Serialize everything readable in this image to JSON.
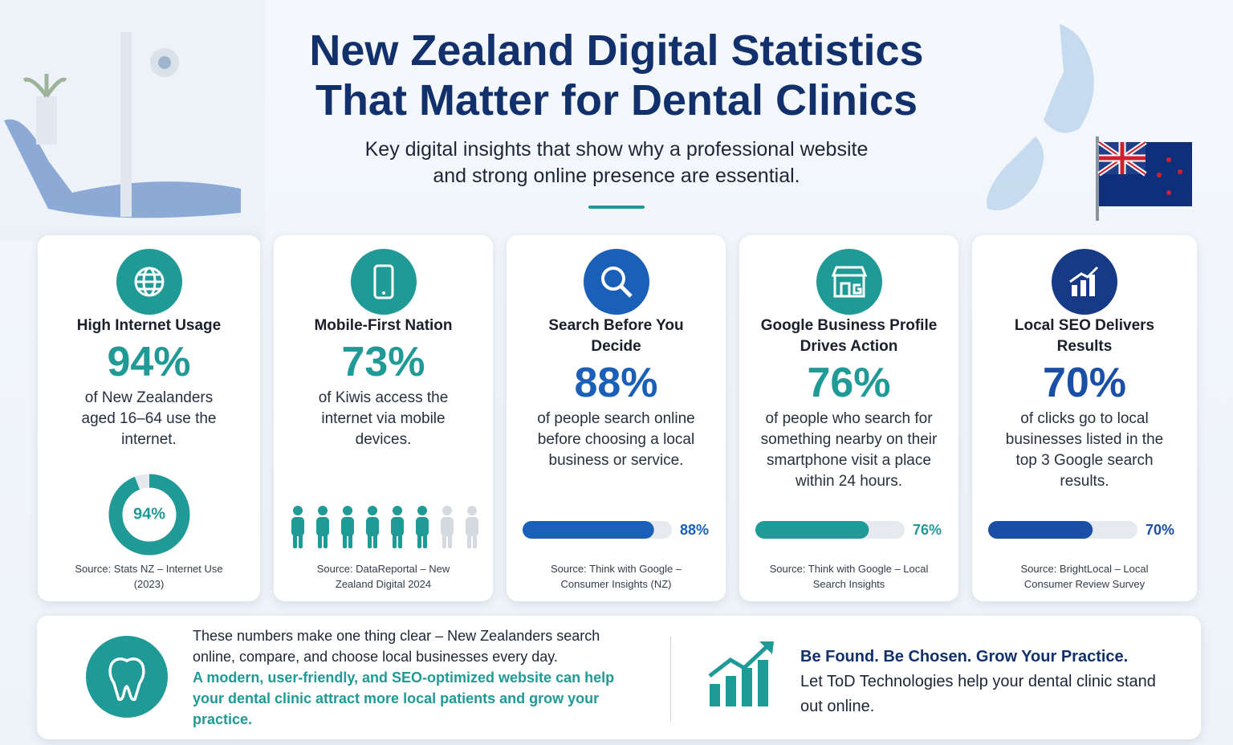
{
  "header": {
    "title": [
      "New Zealand Digital Statistics",
      "That Matter for Dental Clinics"
    ],
    "subtitle": [
      "Key digital insights that show why a professional website",
      "and strong online presence are essential."
    ]
  },
  "cards": [
    {
      "title": "High Internet Usage",
      "stat": {
        "value": 94,
        "label": "94%"
      },
      "description": "of New Zealanders aged 16–64 use the internet.",
      "visual": "donut",
      "color": "#1f9a96",
      "source": "Source: Stats NZ – Internet Use (2023)"
    },
    {
      "title": "Mobile-First Nation",
      "stat": {
        "value": 73,
        "label": "73%"
      },
      "description": "of Kiwis access the internet via mobile devices.",
      "visual": "people",
      "color": "#1f9a96",
      "source": "Source: DataReportal – New Zealand Digital 2024"
    },
    {
      "title": "Search Before You Decide",
      "stat": {
        "value": 88,
        "label": "88%"
      },
      "description": "of people search online before choosing a local business or service.",
      "visual": "bar",
      "color": "#1a5fb8",
      "source": "Source: Think with Google – Consumer Insights (NZ)"
    },
    {
      "title": "Google Business Profile Drives Action",
      "stat": {
        "value": 76,
        "label": "76%"
      },
      "description": "of people who search for something nearby on their smartphone visit a place within 24 hours.",
      "visual": "bar",
      "color": "#1f9a96",
      "source": "Source: Think with Google – Local Search Insights"
    },
    {
      "title": "Local SEO Delivers Results",
      "stat": {
        "value": 70,
        "label": "70%"
      },
      "description": "of clicks go to local businesses listed in the top 3 Google search results.",
      "visual": "bar",
      "color": "#1a4fa8",
      "source": "Source: BrightLocal – Local Consumer Review Survey"
    }
  ],
  "footer": {
    "text": "These numbers make one thing clear – New Zealanders search online, compare, and choose local businesses every day.",
    "highlight": "A modern, user-friendly, and SEO-optimized website can help your dental clinic attract more local patients and grow your practice.",
    "cta_heading": "Be Found. Be Chosen. Grow Your Practice.",
    "cta_text": "Let ToD Technologies help your dental clinic stand out online."
  }
}
